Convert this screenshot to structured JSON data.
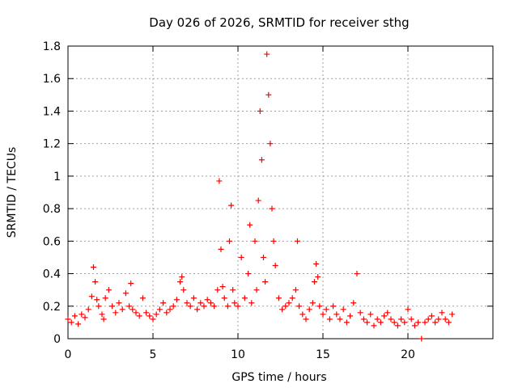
{
  "chart_data": {
    "type": "scatter",
    "title": "Day 026 of 2026, SRMTID for receiver sthg",
    "xlabel": "GPS time / hours",
    "ylabel": "SRMTID / TECUs",
    "xlim": [
      0,
      25
    ],
    "ylim": [
      0,
      1.8
    ],
    "xticks": [
      0,
      5,
      10,
      15,
      20
    ],
    "xtick_labels": [
      "0",
      "5",
      "10",
      "15",
      "20"
    ],
    "yticks": [
      0,
      0.2,
      0.4,
      0.6,
      0.8,
      1.0,
      1.2,
      1.4,
      1.6,
      1.8
    ],
    "ytick_labels": [
      "0",
      "0.2",
      "0.4",
      "0.6",
      "0.8",
      "1",
      "1.2",
      "1.4",
      "1.6",
      "1.8"
    ],
    "grid": true,
    "marker": "+",
    "series_color": "#ff0000",
    "series": [
      {
        "name": "SRMTID",
        "x": [
          0.0,
          0.2,
          0.4,
          0.6,
          0.8,
          1.0,
          1.2,
          1.4,
          1.5,
          1.6,
          1.7,
          1.8,
          2.0,
          2.1,
          2.2,
          2.4,
          2.6,
          2.8,
          3.0,
          3.2,
          3.4,
          3.6,
          3.7,
          3.8,
          4.0,
          4.2,
          4.4,
          4.6,
          4.8,
          5.0,
          5.2,
          5.4,
          5.6,
          5.8,
          6.0,
          6.2,
          6.4,
          6.6,
          6.7,
          6.8,
          7.0,
          7.2,
          7.4,
          7.6,
          7.8,
          8.0,
          8.2,
          8.4,
          8.6,
          8.8,
          8.9,
          9.0,
          9.1,
          9.2,
          9.4,
          9.5,
          9.6,
          9.7,
          9.8,
          10.0,
          10.2,
          10.4,
          10.6,
          10.7,
          10.8,
          11.0,
          11.1,
          11.2,
          11.3,
          11.4,
          11.5,
          11.6,
          11.7,
          11.8,
          11.9,
          12.0,
          12.1,
          12.2,
          12.4,
          12.6,
          12.8,
          13.0,
          13.2,
          13.4,
          13.5,
          13.6,
          13.8,
          14.0,
          14.2,
          14.4,
          14.5,
          14.6,
          14.7,
          14.8,
          15.0,
          15.2,
          15.4,
          15.6,
          15.8,
          16.0,
          16.2,
          16.4,
          16.6,
          16.8,
          17.0,
          17.2,
          17.4,
          17.6,
          17.8,
          18.0,
          18.2,
          18.4,
          18.6,
          18.8,
          19.0,
          19.2,
          19.4,
          19.6,
          19.8,
          20.0,
          20.2,
          20.4,
          20.6,
          20.8,
          21.0,
          21.2,
          21.4,
          21.6,
          21.8,
          22.0,
          22.2,
          22.4,
          22.6
        ],
        "y": [
          0.12,
          0.1,
          0.14,
          0.09,
          0.15,
          0.13,
          0.18,
          0.26,
          0.44,
          0.35,
          0.24,
          0.2,
          0.15,
          0.12,
          0.25,
          0.3,
          0.2,
          0.16,
          0.22,
          0.18,
          0.28,
          0.2,
          0.34,
          0.18,
          0.16,
          0.14,
          0.25,
          0.16,
          0.14,
          0.12,
          0.15,
          0.18,
          0.22,
          0.16,
          0.18,
          0.2,
          0.24,
          0.35,
          0.38,
          0.3,
          0.22,
          0.2,
          0.25,
          0.18,
          0.22,
          0.2,
          0.24,
          0.22,
          0.2,
          0.3,
          0.97,
          0.55,
          0.32,
          0.25,
          0.2,
          0.6,
          0.82,
          0.3,
          0.22,
          0.2,
          0.5,
          0.25,
          0.4,
          0.7,
          0.22,
          0.6,
          0.3,
          0.85,
          1.4,
          1.1,
          0.5,
          0.35,
          1.75,
          1.5,
          1.2,
          0.8,
          0.6,
          0.45,
          0.25,
          0.18,
          0.2,
          0.22,
          0.25,
          0.3,
          0.6,
          0.2,
          0.15,
          0.12,
          0.18,
          0.22,
          0.35,
          0.46,
          0.38,
          0.2,
          0.15,
          0.18,
          0.12,
          0.2,
          0.15,
          0.12,
          0.18,
          0.1,
          0.14,
          0.22,
          0.4,
          0.16,
          0.12,
          0.1,
          0.15,
          0.08,
          0.12,
          0.1,
          0.14,
          0.16,
          0.12,
          0.1,
          0.08,
          0.12,
          0.1,
          0.18,
          0.12,
          0.08,
          0.1,
          0.0,
          0.1,
          0.12,
          0.14,
          0.1,
          0.12,
          0.16,
          0.12,
          0.1,
          0.15
        ]
      }
    ]
  }
}
